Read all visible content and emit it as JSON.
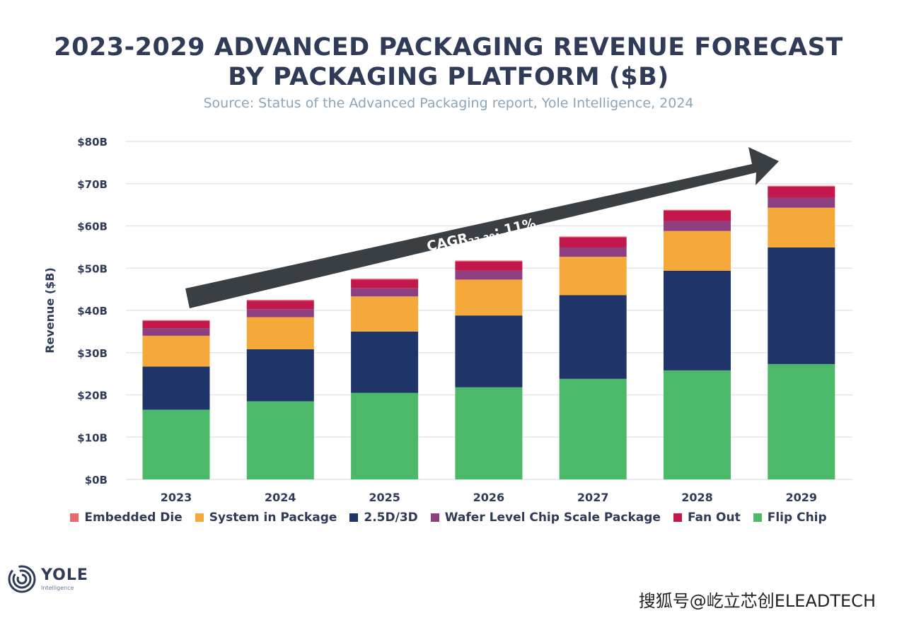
{
  "header": {
    "title_line1": "2023-2029 ADVANCED PACKAGING REVENUE FORECAST",
    "title_line2": "BY PACKAGING PLATFORM ($B)",
    "subtitle": "Source: Status of the Advanced Packaging report, Yole Intelligence, 2024"
  },
  "chart_data": {
    "type": "bar",
    "stacked": true,
    "title": "2023-2029 ADVANCED PACKAGING REVENUE FORECAST BY PACKAGING PLATFORM ($B)",
    "ylabel": "Revenue ($B)",
    "xlabel": "",
    "ylim": [
      0,
      80
    ],
    "y_ticks": [
      "$0B",
      "$10B",
      "$20B",
      "$30B",
      "$40B",
      "$50B",
      "$60B",
      "$70B",
      "$80B"
    ],
    "categories": [
      "2023",
      "2024",
      "2025",
      "2026",
      "2027",
      "2028",
      "2029"
    ],
    "grid": true,
    "legend_position": "bottom",
    "series": [
      {
        "name": "Flip Chip",
        "color": "#4cb86a",
        "values": [
          16.5,
          18.5,
          20.5,
          21.8,
          23.8,
          25.8,
          27.3
        ]
      },
      {
        "name": "2.5D/3D",
        "color": "#1f3468",
        "values": [
          10.2,
          12.3,
          14.5,
          17.0,
          19.8,
          23.6,
          27.6
        ]
      },
      {
        "name": "System in Package",
        "color": "#f5a93a",
        "values": [
          7.3,
          7.6,
          8.3,
          8.5,
          9.1,
          9.4,
          9.4
        ]
      },
      {
        "name": "Wafer Level Chip Scale Package",
        "color": "#8e3f7f",
        "values": [
          1.8,
          1.9,
          2.0,
          2.1,
          2.2,
          2.3,
          2.4
        ]
      },
      {
        "name": "Fan Out",
        "color": "#c2184c",
        "values": [
          1.7,
          2.0,
          2.0,
          2.2,
          2.4,
          2.5,
          2.6
        ]
      },
      {
        "name": "Embedded Die",
        "color": "#e9676f",
        "values": [
          0.2,
          0.2,
          0.2,
          0.2,
          0.2,
          0.2,
          0.2
        ]
      }
    ],
    "annotation": {
      "text_main": "CAGR",
      "text_sub": "23-29",
      "text_value": ": 11%"
    }
  },
  "legend": {
    "items": [
      {
        "label": "Embedded Die",
        "color": "#e9676f"
      },
      {
        "label": "System in Package",
        "color": "#f5a93a"
      },
      {
        "label": "2.5D/3D",
        "color": "#1f3468"
      },
      {
        "label": "Wafer Level Chip Scale Package",
        "color": "#8e3f7f"
      },
      {
        "label": "Fan Out",
        "color": "#c2184c"
      },
      {
        "label": "Flip Chip",
        "color": "#4cb86a"
      }
    ]
  },
  "logo": {
    "name": "YOLE",
    "sub": "Intelligence"
  },
  "watermark": "搜狐号@屹立芯创ELEADTECH",
  "colors": {
    "title": "#2f3b57",
    "subtitle": "#8aa6bb",
    "arrow": "#3a3f44",
    "grid": "#e3e6ea"
  }
}
